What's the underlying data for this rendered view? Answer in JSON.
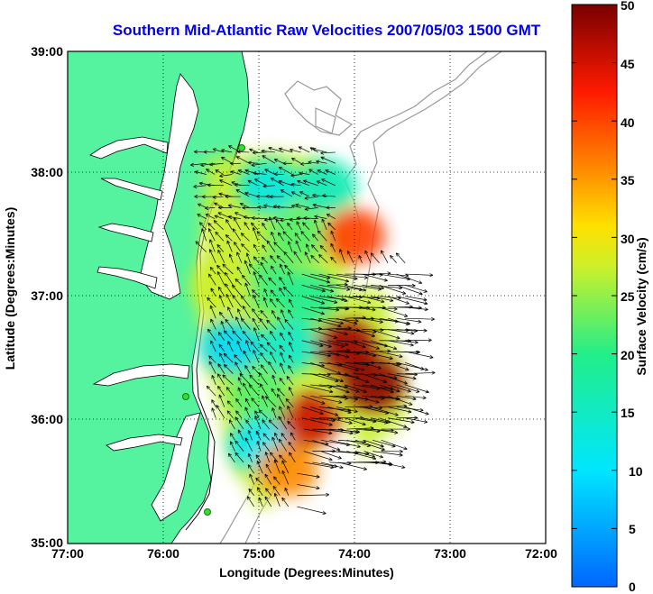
{
  "title": "Southern Mid-Atlantic Raw Velocities 2007/05/03 1500 GMT",
  "axes": {
    "xlabel": "Longitude (Degrees:Minutes)",
    "ylabel": "Latitude (Degrees:Minutes)",
    "xticks": [
      "77:00",
      "76:00",
      "75:00",
      "74:00",
      "73:00",
      "72:00"
    ],
    "yticks": [
      "39:00",
      "38:00",
      "37:00",
      "36:00",
      "35:00"
    ],
    "xlim": [
      -77,
      -72
    ],
    "ylim": [
      35,
      39
    ]
  },
  "colorbar": {
    "label": "Surface Velocity (cm/s)",
    "ticks": [
      "50",
      "45",
      "40",
      "35",
      "30",
      "25",
      "20",
      "15",
      "10",
      "5",
      "0"
    ],
    "range": [
      0,
      50
    ]
  },
  "colors": {
    "land": "#55f2a0",
    "water": "#ffffff",
    "title": "#0000ee",
    "grid": "#000000",
    "bathymetry": "#999999",
    "station": "#33dd33"
  },
  "velocity_patches": [
    {
      "lon": -74.6,
      "lat": 37.5,
      "speed": 22
    },
    {
      "lon": -74.3,
      "lat": 37.9,
      "speed": 15
    },
    {
      "lon": -74.0,
      "lat": 37.5,
      "speed": 40
    },
    {
      "lon": -74.9,
      "lat": 37.1,
      "speed": 21
    },
    {
      "lon": -74.5,
      "lat": 37.0,
      "speed": 19
    },
    {
      "lon": -74.1,
      "lat": 36.6,
      "speed": 48
    },
    {
      "lon": -73.8,
      "lat": 36.3,
      "speed": 49
    },
    {
      "lon": -74.7,
      "lat": 36.6,
      "speed": 14
    },
    {
      "lon": -75.3,
      "lat": 36.6,
      "speed": 9
    },
    {
      "lon": -74.5,
      "lat": 36.0,
      "speed": 45
    },
    {
      "lon": -75.0,
      "lat": 36.2,
      "speed": 22
    },
    {
      "lon": -75.0,
      "lat": 35.8,
      "speed": 10
    },
    {
      "lon": -74.7,
      "lat": 35.6,
      "speed": 36
    },
    {
      "lon": -75.4,
      "lat": 37.1,
      "speed": 27
    },
    {
      "lon": -74.9,
      "lat": 37.9,
      "speed": 12
    }
  ]
}
